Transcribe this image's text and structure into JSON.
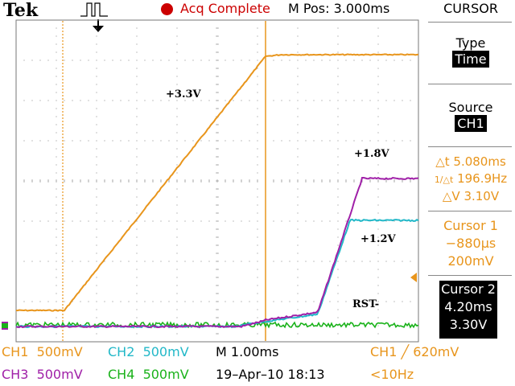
{
  "brand": "Tek",
  "header": {
    "acq_status": "Acq Complete",
    "m_pos": "M Pos: 3.000ms"
  },
  "menu": {
    "title": "CURSOR",
    "type_label": "Type",
    "type_value": "Time",
    "source_label": "Source",
    "source_value": "CH1",
    "delta_t": "5.080ms",
    "inv_delta_t": "196.9Hz",
    "delta_v": "3.10V",
    "cursor1_label": "Cursor 1",
    "cursor1_time": "−880µs",
    "cursor1_volt": "200mV",
    "cursor2_label": "Cursor 2",
    "cursor2_time": "4.20ms",
    "cursor2_volt": "3.30V"
  },
  "annotations": {
    "v33": "+3.3V",
    "v18": "+1.8V",
    "v12": "+1.2V",
    "rst": "RST-"
  },
  "channels": {
    "ch1": {
      "label": "CH1",
      "scale": "500mV",
      "color": "#e8951c"
    },
    "ch2": {
      "label": "CH2",
      "scale": "500mV",
      "color": "#22b8c8"
    },
    "ch3": {
      "label": "CH3",
      "scale": "500mV",
      "color": "#a020a8"
    },
    "ch4": {
      "label": "CH4",
      "scale": "500mV",
      "color": "#1ab21a"
    }
  },
  "timebase": "M 1.00ms",
  "trigger": {
    "channel": "CH1",
    "slope_symbol": "╱",
    "level": "620mV",
    "freq": "<10Hz"
  },
  "datetime": "19–Apr–10 18:13"
}
